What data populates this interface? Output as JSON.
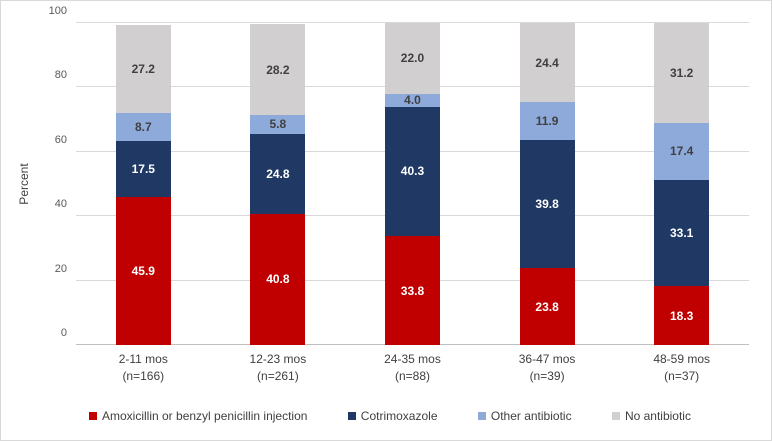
{
  "chart_data": {
    "type": "bar",
    "stacked": true,
    "orientation": "vertical",
    "title": "",
    "xlabel": "",
    "ylabel": "Percent",
    "ylim": [
      0,
      100
    ],
    "yticks": [
      0,
      20,
      40,
      60,
      80,
      100
    ],
    "grid": true,
    "legend_position": "bottom",
    "categories": [
      {
        "label": "2-11 mos",
        "n": "(n=166)"
      },
      {
        "label": "12-23 mos",
        "n": "(n=261)"
      },
      {
        "label": "24-35 mos",
        "n": "(n=88)"
      },
      {
        "label": "36-47 mos",
        "n": "(n=39)"
      },
      {
        "label": "48-59 mos",
        "n": "(n=37)"
      }
    ],
    "series": [
      {
        "name": "Amoxicillin or benzyl penicillin injection",
        "color": "#c00000",
        "label_color": "#ffffff",
        "values": [
          45.9,
          40.8,
          33.8,
          23.8,
          18.3
        ]
      },
      {
        "name": "Cotrimoxazole",
        "color": "#1f3864",
        "label_color": "#ffffff",
        "values": [
          17.5,
          24.8,
          40.3,
          39.8,
          33.1
        ]
      },
      {
        "name": "Other antibiotic",
        "color": "#8eaadb",
        "label_color": "#404040",
        "values": [
          8.7,
          5.8,
          4.0,
          11.9,
          17.4
        ]
      },
      {
        "name": "No antibiotic",
        "color": "#d1cfcf",
        "label_color": "#404040",
        "values": [
          27.2,
          28.2,
          22.0,
          24.4,
          31.2
        ]
      }
    ],
    "colors": {
      "gridline": "#d9d9d9",
      "axis_line": "#bfbfbf",
      "tick_label": "#595959",
      "category_label": "#404040",
      "chart_border": "#d9d9d9"
    }
  }
}
